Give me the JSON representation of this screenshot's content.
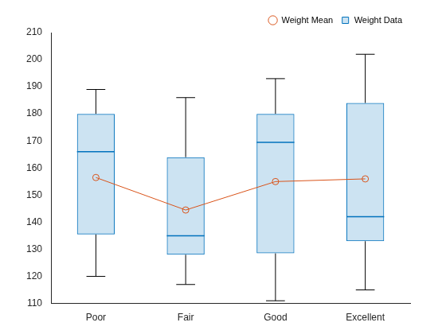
{
  "chart_data": {
    "type": "boxplot",
    "categories": [
      "Poor",
      "Fair",
      "Good",
      "Excellent"
    ],
    "series": [
      {
        "name": "Weight Data",
        "type": "boxplot",
        "color": "#0072bd",
        "min": [
          120,
          117,
          111,
          115
        ],
        "q1": [
          135.5,
          128,
          128.5,
          133
        ],
        "median": [
          166,
          135,
          169.5,
          142
        ],
        "q3": [
          180,
          164,
          180,
          184
        ],
        "max": [
          189,
          186,
          193,
          202
        ]
      },
      {
        "name": "Weight Mean",
        "type": "line",
        "color": "#d95319",
        "marker": "circle",
        "line_style": "solid",
        "values": [
          156.5,
          144.5,
          155,
          156
        ]
      }
    ],
    "ylim": [
      110,
      210
    ],
    "yticks": [
      110,
      120,
      130,
      140,
      150,
      160,
      170,
      180,
      190,
      200,
      210
    ],
    "grid": false,
    "legend": "northeast"
  }
}
